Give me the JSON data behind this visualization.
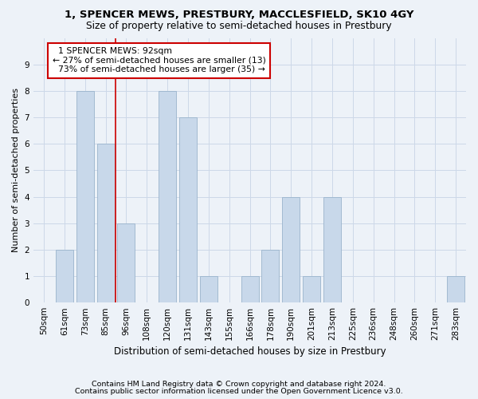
{
  "title": "1, SPENCER MEWS, PRESTBURY, MACCLESFIELD, SK10 4GY",
  "subtitle": "Size of property relative to semi-detached houses in Prestbury",
  "xlabel": "Distribution of semi-detached houses by size in Prestbury",
  "ylabel": "Number of semi-detached properties",
  "categories": [
    "50sqm",
    "61sqm",
    "73sqm",
    "85sqm",
    "96sqm",
    "108sqm",
    "120sqm",
    "131sqm",
    "143sqm",
    "155sqm",
    "166sqm",
    "178sqm",
    "190sqm",
    "201sqm",
    "213sqm",
    "225sqm",
    "236sqm",
    "248sqm",
    "260sqm",
    "271sqm",
    "283sqm"
  ],
  "values": [
    0,
    2,
    8,
    6,
    3,
    0,
    8,
    7,
    1,
    0,
    1,
    2,
    4,
    1,
    4,
    0,
    0,
    0,
    0,
    0,
    1
  ],
  "bar_color": "#c8d8ea",
  "bar_edge_color": "#9ab4cc",
  "grid_color": "#ccd8e8",
  "background_color": "#edf2f8",
  "property_label": "1 SPENCER MEWS: 92sqm",
  "smaller_pct": 27,
  "smaller_count": 13,
  "larger_pct": 73,
  "larger_count": 35,
  "red_line_color": "#cc0000",
  "annotation_box_color": "#ffffff",
  "annotation_box_edge": "#cc0000",
  "ylim": [
    0,
    10
  ],
  "yticks": [
    0,
    1,
    2,
    3,
    4,
    5,
    6,
    7,
    8,
    9,
    10
  ],
  "footer1": "Contains HM Land Registry data © Crown copyright and database right 2024.",
  "footer2": "Contains public sector information licensed under the Open Government Licence v3.0.",
  "title_fontsize": 9.5,
  "subtitle_fontsize": 8.8,
  "xlabel_fontsize": 8.5,
  "ylabel_fontsize": 8,
  "tick_fontsize": 7.5,
  "annotation_fontsize": 7.8,
  "footer_fontsize": 6.8
}
